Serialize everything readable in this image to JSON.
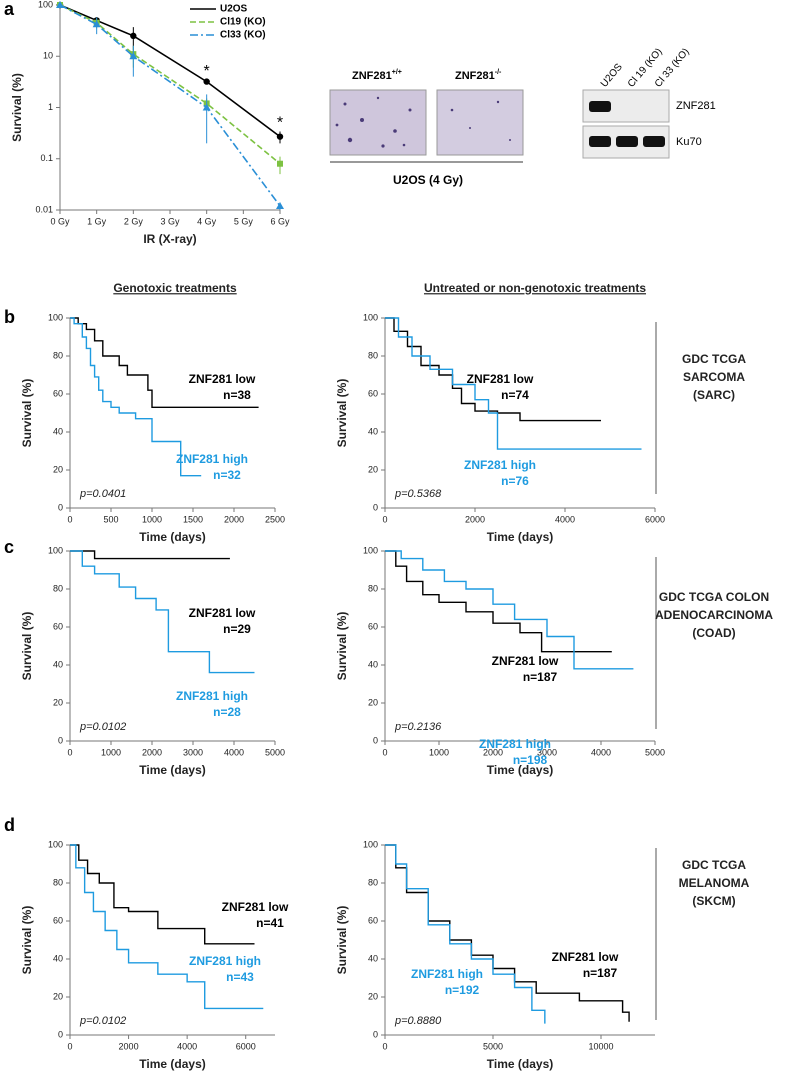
{
  "panel_labels": [
    "a",
    "b",
    "c",
    "d"
  ],
  "headers": [
    "Genotoxic treatments",
    "Untreated or non-genotoxic treatments"
  ],
  "side_labels": [
    [
      "GDC TCGA",
      "SARCOMA",
      "(SARC)"
    ],
    [
      "GDC TCGA COLON",
      "ADENOCARCINOMA",
      "(COAD)"
    ],
    [
      "GDC TCGA",
      "MELANOMA",
      "(SKCM)"
    ]
  ],
  "images": {
    "labels": [
      {
        "text": "ZNF281",
        "sup": "+/+"
      },
      {
        "text": "ZNF281",
        "sup": "-/-"
      }
    ],
    "caption": "U2OS (4 Gy)"
  },
  "blot": {
    "lanes": [
      "U2OS",
      "Cl 19 (KO)",
      "Cl 33 (KO)"
    ],
    "bands": [
      "ZNF281",
      "Ku70"
    ]
  },
  "chart_data": [
    {
      "type": "line",
      "xlabel": "IR (X-ray)",
      "ylabel": "Survival (%)",
      "log_y": true,
      "xlim": [
        0,
        6
      ],
      "xticks": [
        {
          "value": 0,
          "label": "0 Gy"
        },
        {
          "value": 1,
          "label": "1 Gy"
        },
        {
          "value": 2,
          "label": "2 Gy"
        },
        {
          "value": 3,
          "label": "3 Gy"
        },
        {
          "value": 4,
          "label": "4 Gy"
        },
        {
          "value": 5,
          "label": "5 Gy"
        },
        {
          "value": 6,
          "label": "6 Gy"
        }
      ],
      "ylim": [
        0.01,
        100
      ],
      "yticks": [
        0.01,
        0.1,
        1,
        10,
        100
      ],
      "legend": "upper right",
      "annotations": [
        {
          "text": "*",
          "x": 4
        },
        {
          "text": "*",
          "x": 6
        }
      ],
      "series": [
        {
          "name": "U2OS",
          "color": "#000000",
          "dash": "none",
          "marker": "circle",
          "x": [
            0,
            1,
            2,
            4,
            6
          ],
          "values": [
            100,
            50,
            25,
            3.2,
            0.27
          ],
          "errors": [
            0,
            8,
            12,
            0.3,
            0.07
          ]
        },
        {
          "name": "Cl19 (KO)",
          "color": "#7dc242",
          "dash": "6,3",
          "marker": "square",
          "x": [
            0,
            1,
            2,
            4,
            6
          ],
          "values": [
            100,
            45,
            11,
            1.2,
            0.08
          ],
          "errors": [
            0,
            10,
            5,
            0.3,
            0.03
          ]
        },
        {
          "name": "Cl33 (KO)",
          "color": "#2a8fd6",
          "dash": "8,3,2,3",
          "marker": "triangle",
          "x": [
            0,
            1,
            2,
            4,
            6
          ],
          "values": [
            100,
            42,
            10,
            1.0,
            0.012
          ],
          "errors": [
            0,
            15,
            6,
            0.8,
            0.002
          ]
        }
      ]
    },
    {
      "type": "km",
      "xlabel": "Time (days)",
      "ylabel": "Survival (%)",
      "xlim": [
        0,
        2500
      ],
      "xticks": [
        0,
        500,
        1000,
        1500,
        2000,
        2500
      ],
      "ylim": [
        0,
        100
      ],
      "yticks": [
        0,
        20,
        40,
        60,
        80,
        100
      ],
      "p_value": "p=0.0401",
      "series": [
        {
          "name": "ZNF281 low",
          "n_label": "n=38",
          "color": "#000000",
          "x": [
            0,
            100,
            200,
            300,
            400,
            600,
            700,
            950,
            1000,
            2300
          ],
          "values": [
            100,
            97,
            94,
            88,
            80,
            75,
            70,
            62,
            53,
            53
          ]
        },
        {
          "name": "ZNF281 high",
          "n_label": "n=32",
          "color": "#1e9be0",
          "x": [
            0,
            50,
            150,
            200,
            250,
            300,
            350,
            400,
            500,
            600,
            800,
            1000,
            1350,
            1600
          ],
          "values": [
            100,
            97,
            90,
            84,
            75,
            69,
            62,
            56,
            53,
            50,
            47,
            35,
            17,
            17
          ]
        }
      ]
    },
    {
      "type": "km",
      "xlabel": "Time (days)",
      "ylabel": "Survival (%)",
      "xlim": [
        0,
        6000
      ],
      "xticks": [
        0,
        2000,
        4000,
        6000
      ],
      "ylim": [
        0,
        100
      ],
      "yticks": [
        0,
        20,
        40,
        60,
        80,
        100
      ],
      "p_value": "p=0.5368",
      "series": [
        {
          "name": "ZNF281 low",
          "n_label": "n=74",
          "color": "#000000",
          "x": [
            0,
            200,
            500,
            800,
            1200,
            1500,
            1700,
            2000,
            2500,
            3000,
            4800
          ],
          "values": [
            100,
            93,
            85,
            75,
            70,
            63,
            55,
            51,
            50,
            46,
            46
          ]
        },
        {
          "name": "ZNF281 high",
          "n_label": "n=76",
          "color": "#1e9be0",
          "x": [
            0,
            300,
            600,
            1000,
            1500,
            2000,
            2300,
            2500,
            5700
          ],
          "values": [
            100,
            90,
            80,
            73,
            65,
            57,
            50,
            31,
            31
          ]
        }
      ]
    },
    {
      "type": "km",
      "xlabel": "Time (days)",
      "ylabel": "Survival (%)",
      "xlim": [
        0,
        5000
      ],
      "xticks": [
        0,
        1000,
        2000,
        3000,
        4000,
        5000
      ],
      "ylim": [
        0,
        100
      ],
      "yticks": [
        0,
        20,
        40,
        60,
        80,
        100
      ],
      "p_value": "p=0.0102",
      "series": [
        {
          "name": "ZNF281 low",
          "n_label": "n=29",
          "color": "#000000",
          "x": [
            0,
            600,
            3900
          ],
          "values": [
            100,
            96,
            96
          ]
        },
        {
          "name": "ZNF281 high",
          "n_label": "n=28",
          "color": "#1e9be0",
          "x": [
            0,
            300,
            600,
            1200,
            1600,
            2100,
            2400,
            3400,
            4500
          ],
          "values": [
            100,
            92,
            88,
            81,
            75,
            69,
            47,
            36,
            36
          ]
        }
      ]
    },
    {
      "type": "km",
      "xlabel": "Time (days)",
      "ylabel": "Survival (%)",
      "xlim": [
        0,
        5000
      ],
      "xticks": [
        0,
        1000,
        2000,
        3000,
        4000,
        5000
      ],
      "ylim": [
        0,
        100
      ],
      "yticks": [
        0,
        20,
        40,
        60,
        80,
        100
      ],
      "p_value": "p=0.2136",
      "series": [
        {
          "name": "ZNF281 low",
          "n_label": "n=187",
          "color": "#000000",
          "x": [
            0,
            200,
            400,
            700,
            1000,
            1500,
            2000,
            2500,
            2900,
            4200
          ],
          "values": [
            100,
            92,
            84,
            77,
            73,
            68,
            62,
            57,
            47,
            47
          ]
        },
        {
          "name": "ZNF281 high",
          "n_label": "n=198",
          "color": "#1e9be0",
          "x": [
            0,
            300,
            700,
            1100,
            1500,
            2000,
            2400,
            3000,
            3500,
            4600
          ],
          "values": [
            100,
            96,
            90,
            84,
            80,
            72,
            64,
            55,
            38,
            38
          ]
        }
      ]
    },
    {
      "type": "km",
      "xlabel": "Time (days)",
      "ylabel": "Survival (%)",
      "xlim": [
        0,
        7000
      ],
      "xticks": [
        0,
        2000,
        4000,
        6000
      ],
      "ylim": [
        0,
        100
      ],
      "yticks": [
        0,
        20,
        40,
        60,
        80,
        100
      ],
      "p_value": "p=0.0102",
      "series": [
        {
          "name": "ZNF281 low",
          "n_label": "n=41",
          "color": "#000000",
          "x": [
            0,
            300,
            600,
            1000,
            1500,
            2000,
            3000,
            4600,
            6300
          ],
          "values": [
            100,
            92,
            85,
            80,
            67,
            65,
            56,
            48,
            48
          ]
        },
        {
          "name": "ZNF281 high",
          "n_label": "n=43",
          "color": "#1e9be0",
          "x": [
            0,
            200,
            500,
            800,
            1200,
            1600,
            2000,
            3000,
            4000,
            4600,
            6600
          ],
          "values": [
            100,
            88,
            75,
            65,
            55,
            45,
            38,
            32,
            28,
            14,
            14
          ]
        }
      ]
    },
    {
      "type": "km",
      "xlabel": "Time (days)",
      "ylabel": "Survival (%)",
      "xlim": [
        0,
        12500
      ],
      "xticks": [
        0,
        5000,
        10000
      ],
      "ylim": [
        0,
        100
      ],
      "yticks": [
        0,
        20,
        40,
        60,
        80,
        100
      ],
      "p_value": "p=0.8880",
      "series": [
        {
          "name": "ZNF281 low",
          "n_label": "n=187",
          "color": "#000000",
          "x": [
            0,
            500,
            1000,
            2000,
            3000,
            4000,
            5000,
            6000,
            7000,
            9000,
            11000,
            11300
          ],
          "values": [
            100,
            88,
            75,
            60,
            50,
            42,
            35,
            28,
            22,
            18,
            12,
            7
          ]
        },
        {
          "name": "ZNF281 high",
          "n_label": "n=192",
          "color": "#1e9be0",
          "x": [
            0,
            500,
            1000,
            2000,
            3000,
            4000,
            5000,
            6000,
            6800,
            7400
          ],
          "values": [
            100,
            90,
            77,
            58,
            48,
            40,
            32,
            25,
            13,
            6
          ]
        }
      ]
    }
  ]
}
